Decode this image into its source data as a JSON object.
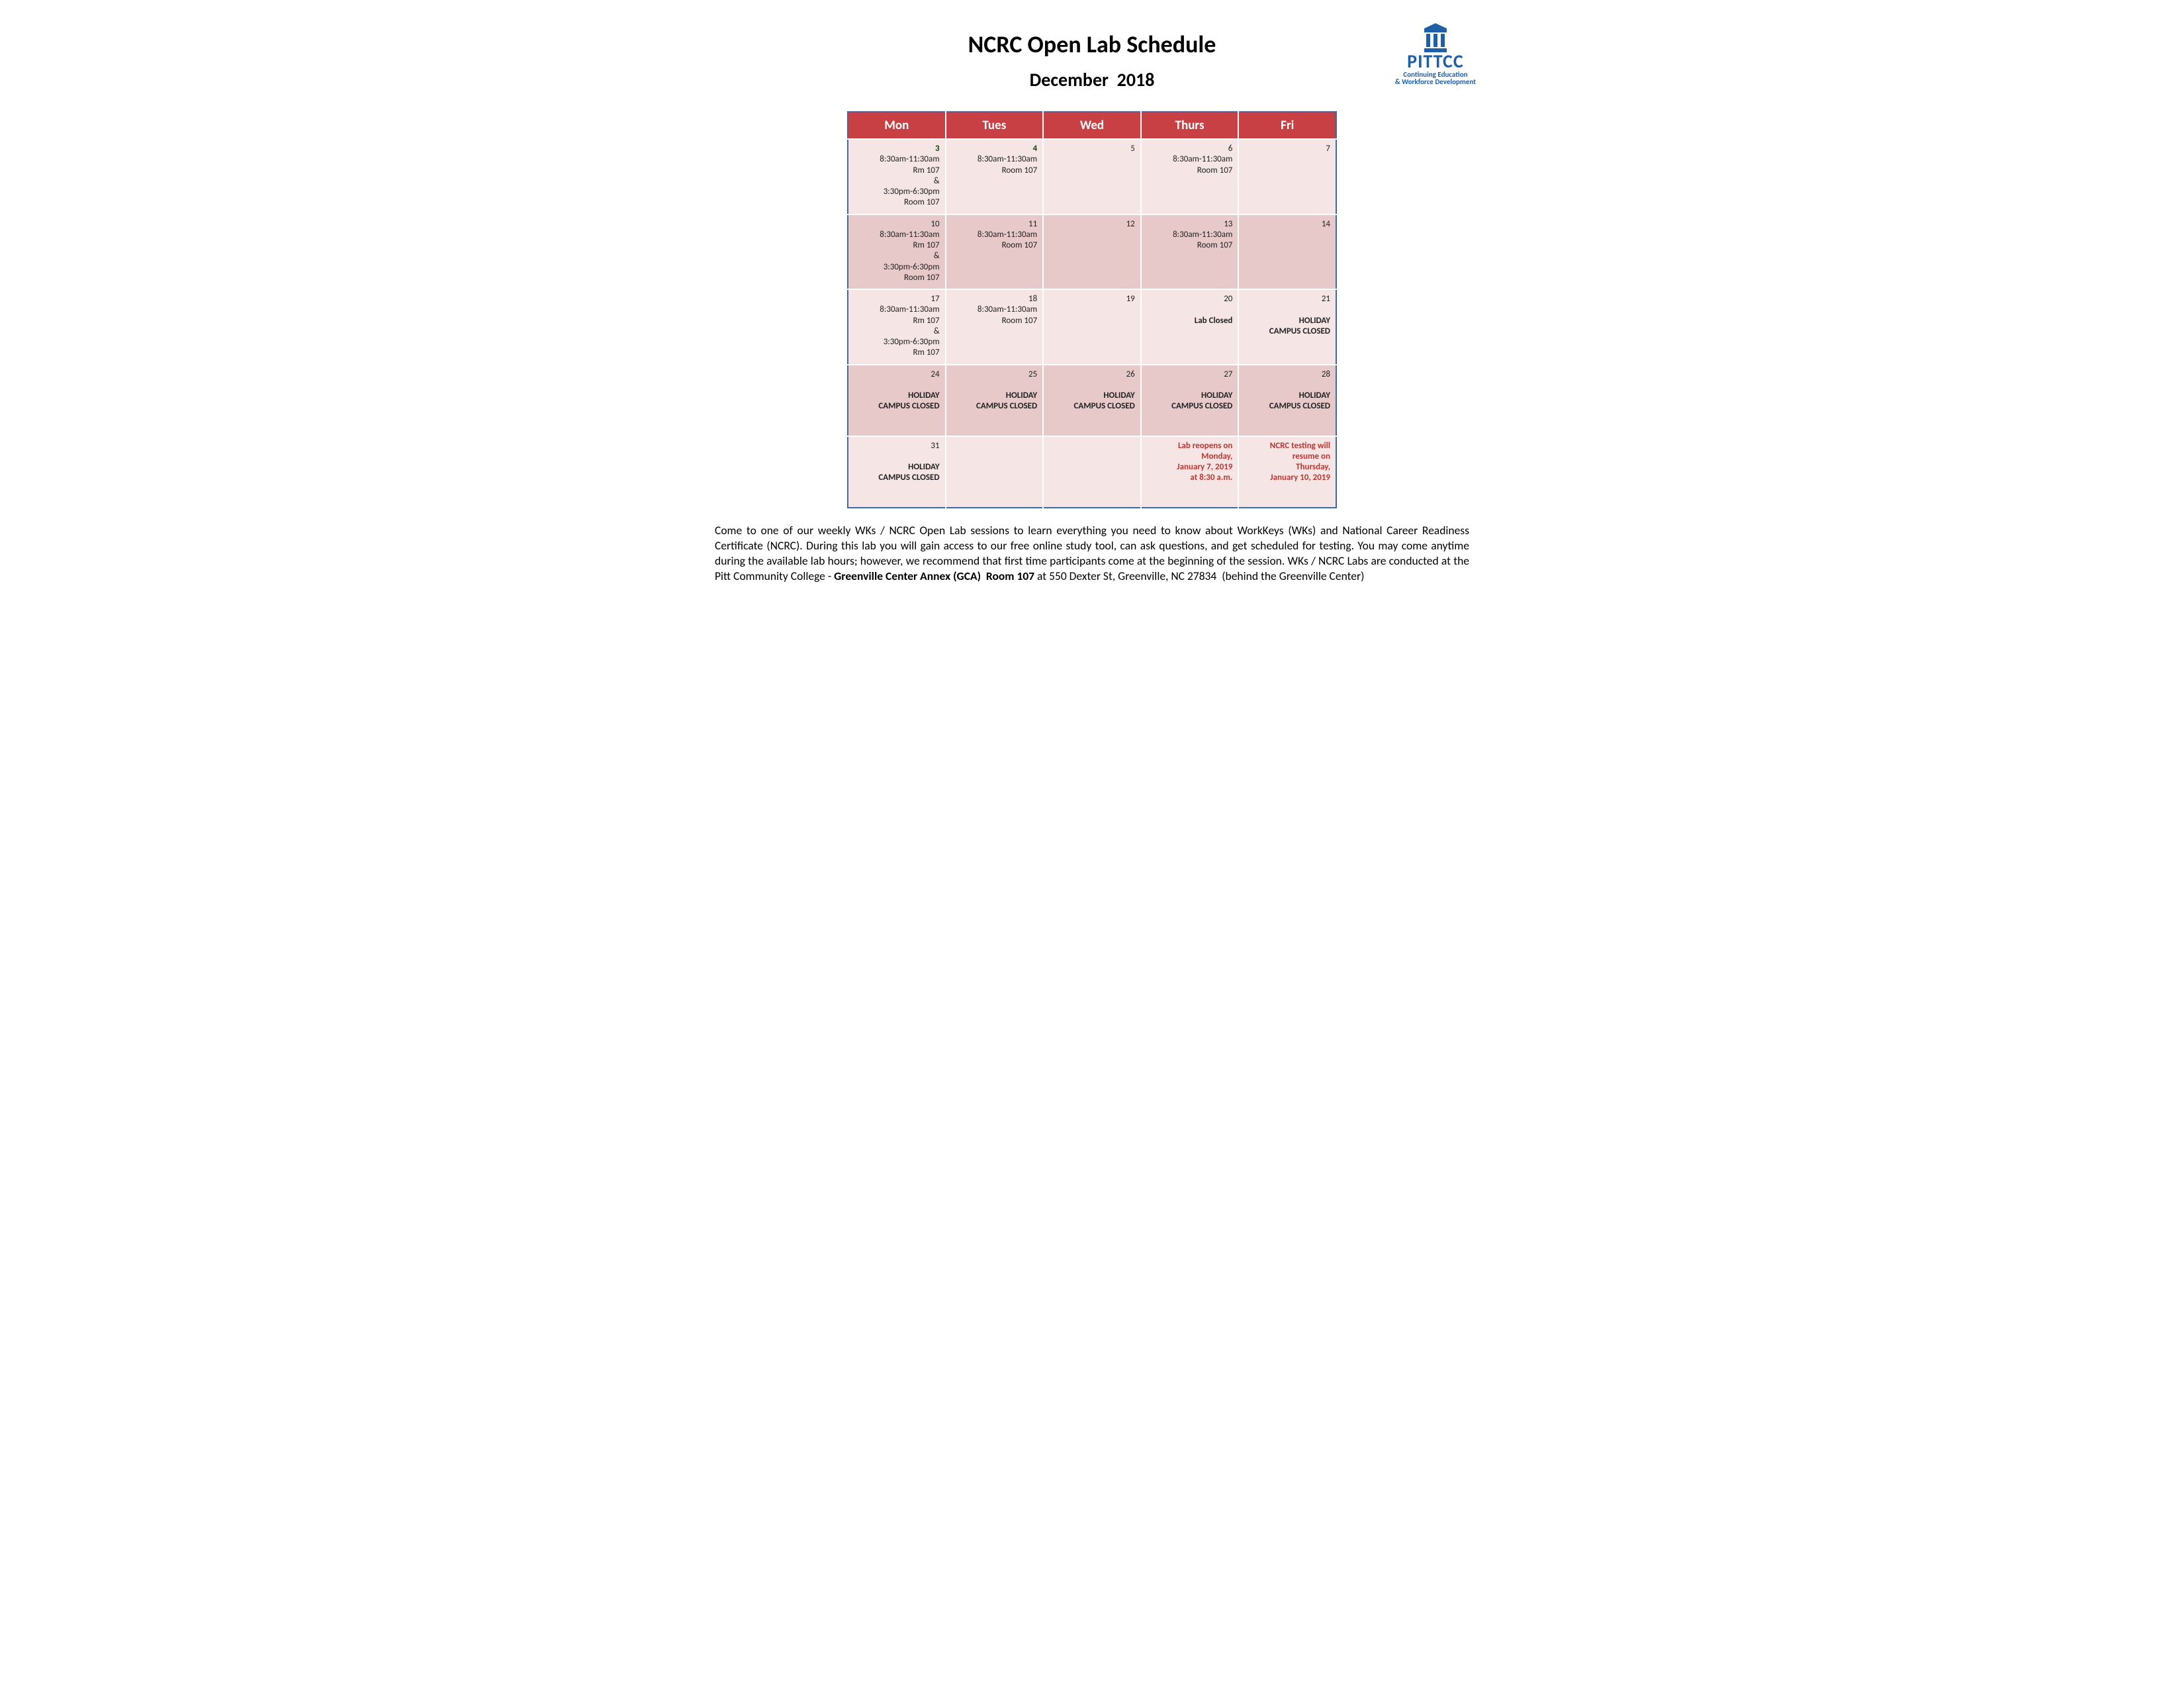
{
  "header": {
    "title": "NCRC Open Lab Schedule",
    "subtitle": "December  2018"
  },
  "logo": {
    "brand": "PITTCC",
    "line1": "Continuing Education",
    "line2": "& Workforce Development",
    "color": "#1f5fa8"
  },
  "calendar": {
    "border_color": "#3d6aa6",
    "header_bg": "#c84044",
    "header_fg": "#ffffff",
    "row_light_bg": "#f5e5e5",
    "row_dark_bg": "#e7c9c9",
    "days": [
      "Mon",
      "Tues",
      "Wed",
      "Thurs",
      "Fri"
    ],
    "rows": [
      {
        "shade": "light",
        "cells": [
          {
            "date": "3",
            "date_bold": true,
            "text": "8:30am-11:30am\nRm 107\n&\n3:30pm-6:30pm\nRoom 107"
          },
          {
            "date": "4",
            "date_bold": true,
            "text": "8:30am-11:30am\nRoom 107"
          },
          {
            "date": "5",
            "text": ""
          },
          {
            "date": "6",
            "text": "8:30am-11:30am\nRoom 107"
          },
          {
            "date": "7",
            "text": ""
          }
        ]
      },
      {
        "shade": "dark",
        "cells": [
          {
            "date": "10",
            "text": "8:30am-11:30am\nRm 107\n&\n3:30pm-6:30pm\nRoom 107"
          },
          {
            "date": "11",
            "text": "8:30am-11:30am\nRoom 107"
          },
          {
            "date": "12",
            "text": ""
          },
          {
            "date": "13",
            "text": "8:30am-11:30am\nRoom 107"
          },
          {
            "date": "14",
            "text": ""
          }
        ]
      },
      {
        "shade": "light",
        "cells": [
          {
            "date": "17",
            "text": "8:30am-11:30am\nRm 107\n&\n3:30pm-6:30pm\nRm 107"
          },
          {
            "date": "18",
            "text": "8:30am-11:30am\nRoom 107"
          },
          {
            "date": "19",
            "text": ""
          },
          {
            "date": "20",
            "text": "\nLab Closed",
            "bold": true
          },
          {
            "date": "21",
            "text": "\nHOLIDAY\nCAMPUS CLOSED",
            "bold": true
          }
        ]
      },
      {
        "shade": "dark",
        "cells": [
          {
            "date": "24",
            "text": "\nHOLIDAY\nCAMPUS CLOSED",
            "bold": true
          },
          {
            "date": "25",
            "text": "\nHOLIDAY\nCAMPUS CLOSED",
            "bold": true
          },
          {
            "date": "26",
            "text": "\nHOLIDAY\nCAMPUS CLOSED",
            "bold": true
          },
          {
            "date": "27",
            "text": "\nHOLIDAY\nCAMPUS CLOSED",
            "bold": true
          },
          {
            "date": "28",
            "text": "\nHOLIDAY\nCAMPUS CLOSED",
            "bold": true
          }
        ]
      },
      {
        "shade": "light",
        "cells": [
          {
            "date": "31",
            "text": "\nHOLIDAY\nCAMPUS CLOSED",
            "bold": true
          },
          {
            "date": "",
            "text": ""
          },
          {
            "date": "",
            "text": ""
          },
          {
            "date": "",
            "text": "Lab reopens on\nMonday,\nJanuary 7, 2019\nat 8:30 a.m.",
            "red": true
          },
          {
            "date": "",
            "text": "NCRC testing will\nresume on\nThursday,\nJanuary 10, 2019",
            "red": true
          }
        ]
      }
    ]
  },
  "footer": {
    "p1a": "Come to one of our weekly WKs / NCRC Open Lab sessions to learn everything you need to know about WorkKeys (WKs) and National Career Readiness Certificate (NCRC). During this lab you will gain access to our free online study tool, can ask questions, and get scheduled for testing. You may come anytime during the available lab hours; however, we recommend that first time participants come at the beginning of the session. WKs / NCRC Labs are conducted at the Pitt Community College - ",
    "p1b": "Greenville Center Annex (GCA)  Room 107",
    "p1c": " at 550 Dexter St, Greenville, NC 27834  (behind the Greenville Center)"
  }
}
